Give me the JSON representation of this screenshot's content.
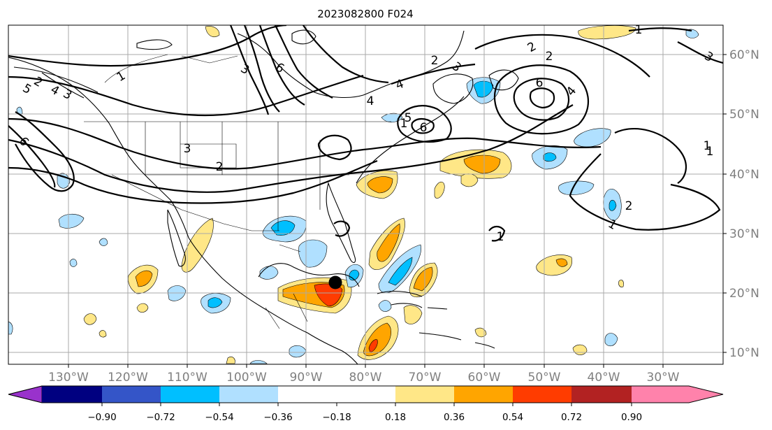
{
  "title": "2023082800 F024",
  "lon_labels": [
    "130°W",
    "120°W",
    "110°W",
    "100°W",
    "90°W",
    "80°W",
    "70°W",
    "60°W",
    "50°W",
    "40°W",
    "30°W"
  ],
  "lat_labels": [
    "60°N",
    "50°N",
    "40°N",
    "30°N",
    "20°N",
    "10°N"
  ],
  "colorbar": {
    "tick_labels": [
      "−0.90",
      "−0.72",
      "−0.54",
      "−0.36",
      "−0.18",
      "0.18",
      "0.36",
      "0.54",
      "0.72",
      "0.90"
    ],
    "colors": [
      "#9932cc",
      "#000080",
      "#3455c8",
      "#00bfff",
      "#b0e0ff",
      "#ffffff",
      "#ffe787",
      "#ffa500",
      "#ff3c00",
      "#b22222",
      "#ff82ab"
    ]
  },
  "contour_labels": [
    "1",
    "2",
    "3",
    "4",
    "5",
    "6",
    "6",
    "3",
    "4",
    "2",
    "3",
    "2",
    "6",
    "1",
    "2",
    "4",
    "1",
    "6",
    "5",
    "4",
    "3",
    "2",
    "1",
    "2",
    "1",
    "1",
    "3",
    "1"
  ],
  "storm_marker": "filled black circle"
}
